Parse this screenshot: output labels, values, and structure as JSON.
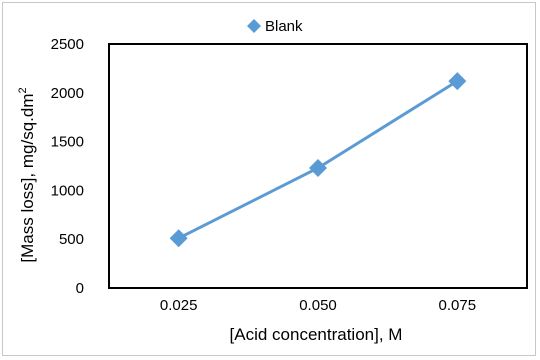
{
  "chart_data": {
    "type": "line",
    "categories": [
      "0.025",
      "0.050",
      "0.075"
    ],
    "series": [
      {
        "name": "Blank",
        "values": [
          510,
          1230,
          2120
        ],
        "color": "#5b9bd5",
        "marker": "diamond"
      }
    ],
    "xlabel": "[Acid concentration], M",
    "ylabel_main": "[Mass loss], mg/sq.dm",
    "ylabel_superscript": "2",
    "yticks": [
      "0",
      "500",
      "1000",
      "1500",
      "2000",
      "2500"
    ],
    "ylim": [
      0,
      2500
    ],
    "grid": false,
    "legend_position": "top",
    "plot_border_color": "#000000"
  }
}
